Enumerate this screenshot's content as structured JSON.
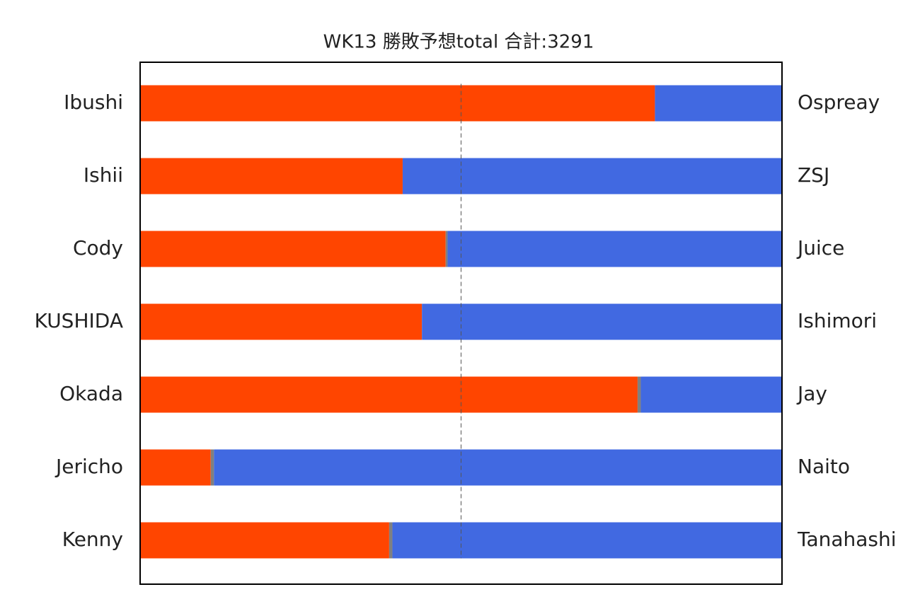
{
  "chart_data": {
    "type": "stacked_barh",
    "title": "WK13 勝敗予想total 合計:3291",
    "categories": [
      "Ibushi",
      "Ishii",
      "Cody",
      "KUSHIDA",
      "Okada",
      "Jericho",
      "Kenny"
    ],
    "categories_right": [
      "Ospreay",
      "ZSJ",
      "Juice",
      "Ishimori",
      "Jay",
      "Naito",
      "Tanahashi"
    ],
    "series": [
      {
        "color": "#ff4500",
        "values": [
          80.2,
          40.9,
          47.6,
          43.9,
          77.5,
          11.0,
          38.8
        ]
      },
      {
        "color": "#808080",
        "values": [
          0,
          0,
          0.3,
          0,
          0.5,
          0.5,
          0.5
        ]
      },
      {
        "color": "#4169e1",
        "values": [
          19.8,
          59.1,
          52.1,
          56.1,
          22.0,
          88.5,
          60.7
        ]
      }
    ],
    "xlim": [
      0,
      100
    ],
    "reference_line": 50
  }
}
